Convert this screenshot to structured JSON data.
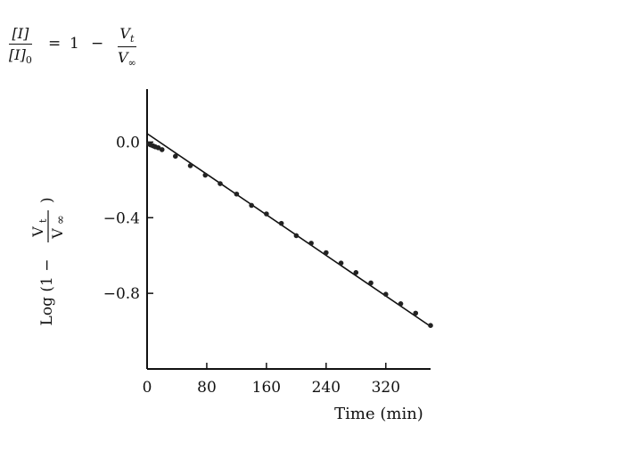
{
  "equation": {
    "lhs_num": "[I]",
    "lhs_den": "[I]",
    "lhs_den_sub": "0",
    "equals": "=",
    "one": "1",
    "minus": "−",
    "rhs_num": "V",
    "rhs_num_sub": "t",
    "rhs_den": "V",
    "rhs_den_sub": "∞"
  },
  "chart_data": {
    "type": "scatter",
    "title": "",
    "xlabel": "Time (min)",
    "ylabel": "Log (1 − Vt/V∞)",
    "ylabel_parts": {
      "prefix": "Log (1 −",
      "num": "V",
      "num_sub": "t",
      "den": "V",
      "den_sub": "∞",
      "suffix": ")"
    },
    "xlim": [
      0,
      380
    ],
    "ylim": [
      -1.2,
      0.28
    ],
    "xticks": [
      0,
      80,
      160,
      240,
      320
    ],
    "xtick_labels": [
      "0",
      "80",
      "160",
      "240",
      "320"
    ],
    "yticks": [
      0.0,
      -0.4,
      -0.8
    ],
    "ytick_labels": [
      "0.0",
      "−0.4",
      "−0.8"
    ],
    "grid": false,
    "series": [
      {
        "x": [
          2,
          5,
          8,
          11,
          15,
          20,
          38,
          58,
          78,
          98,
          120,
          140,
          160,
          180,
          200,
          220,
          240,
          260,
          280,
          300,
          320,
          340,
          360,
          380
        ],
        "y": [
          -0.01,
          -0.015,
          -0.02,
          -0.025,
          -0.03,
          -0.04,
          -0.075,
          -0.125,
          -0.175,
          -0.22,
          -0.275,
          -0.335,
          -0.38,
          -0.43,
          -0.495,
          -0.535,
          -0.585,
          -0.64,
          -0.69,
          -0.745,
          -0.805,
          -0.855,
          -0.905,
          -0.97
        ]
      }
    ],
    "fit_line": {
      "x": [
        0,
        380
      ],
      "y": [
        0.045,
        -0.975
      ]
    }
  }
}
